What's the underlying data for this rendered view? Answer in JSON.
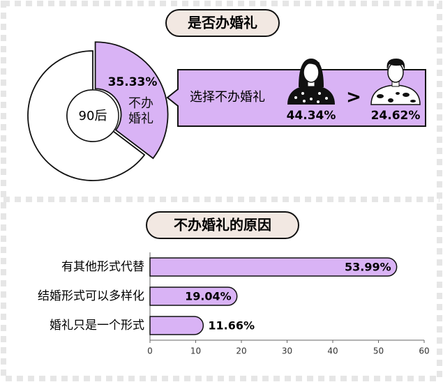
{
  "chart_data": [
    {
      "type": "pie",
      "title": "是否办婚礼",
      "center_label": "90后",
      "categories": [
        "不办婚礼",
        null
      ],
      "values": [
        35.33,
        64.67
      ],
      "value_labels": [
        "35.33%",
        null
      ],
      "colors": [
        "#d9b3f5",
        "#ffffff"
      ],
      "exploded": 0,
      "callout": {
        "text": "选择不办婚礼",
        "symbol": ">",
        "values": [
          44.34,
          24.62
        ],
        "value_labels": [
          "44.34%",
          "24.62%"
        ]
      }
    },
    {
      "type": "bar",
      "orientation": "horizontal",
      "title": "不办婚礼的原因",
      "categories": [
        "有其他形式代替",
        "结婚形式可以多样化",
        "婚礼只是一个形式"
      ],
      "values": [
        53.99,
        19.04,
        11.66
      ],
      "value_labels": [
        "53.99%",
        "19.04%",
        "11.66%"
      ],
      "color": "#d9b3f5",
      "xlim": [
        0,
        60
      ],
      "xticks": [
        0,
        10,
        20,
        30,
        40,
        50,
        60
      ]
    }
  ]
}
